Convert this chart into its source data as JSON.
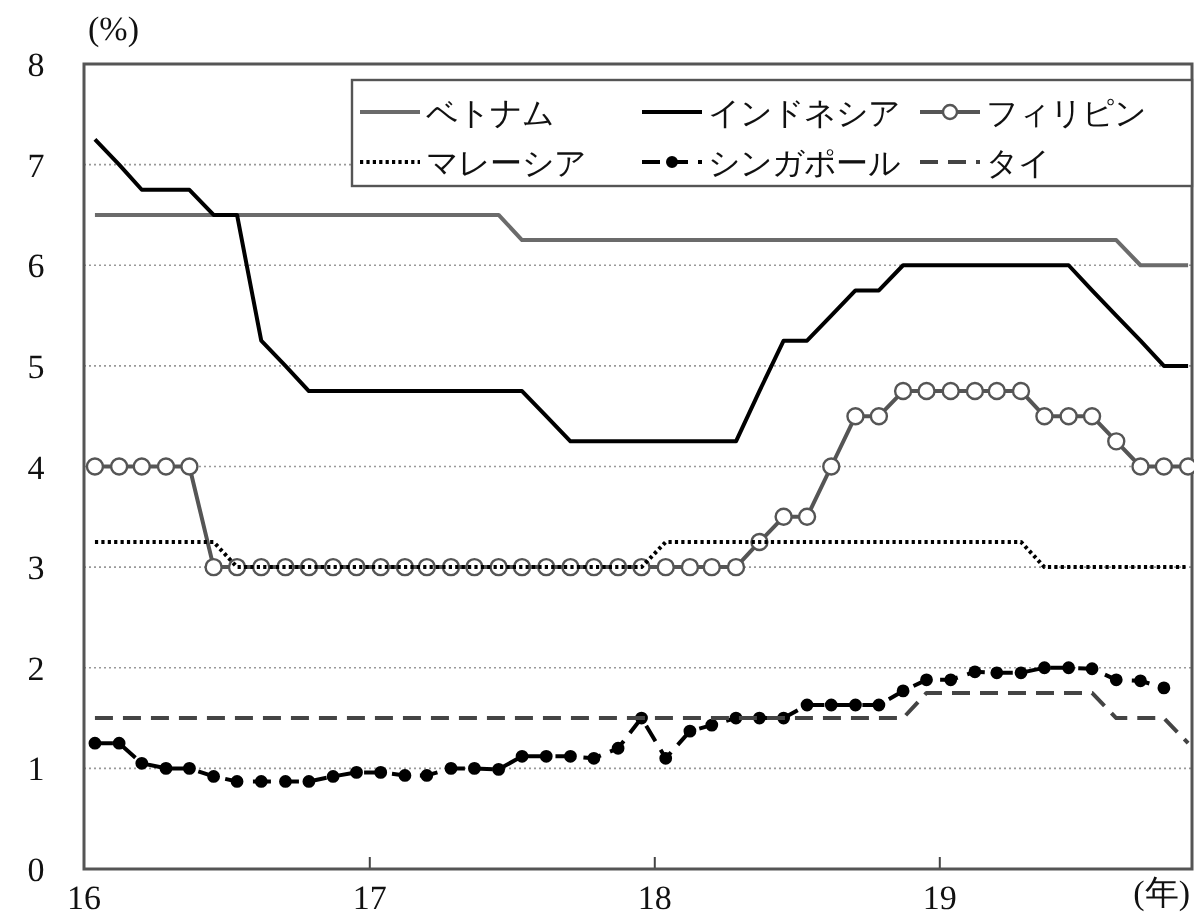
{
  "chart_data": {
    "type": "line",
    "ylabel": "(%)",
    "xlabel": "(年)",
    "x": [
      "2016-01-15",
      "2016-02-15",
      "2016-03-15",
      "2016-04-15",
      "2016-05-15",
      "2016-06-15",
      "2016-07-15",
      "2016-08-15",
      "2016-09-15",
      "2016-10-15",
      "2016-11-15",
      "2016-12-15",
      "2017-01-15",
      "2017-02-15",
      "2017-03-15",
      "2017-04-15",
      "2017-05-15",
      "2017-06-15",
      "2017-07-15",
      "2017-08-15",
      "2017-09-15",
      "2017-10-15",
      "2017-11-15",
      "2017-12-15",
      "2018-01-15",
      "2018-02-15",
      "2018-03-15",
      "2018-04-15",
      "2018-05-15",
      "2018-06-15",
      "2018-07-15",
      "2018-08-15",
      "2018-09-15",
      "2018-10-15",
      "2018-11-15",
      "2018-12-15",
      "2019-01-15",
      "2019-02-15",
      "2019-03-15",
      "2019-04-15",
      "2019-05-15",
      "2019-06-15",
      "2019-07-15",
      "2019-08-15",
      "2019-09-15",
      "2019-10-15",
      "2019-11-15"
    ],
    "series": [
      {
        "name": "ベトナム",
        "color": "#6b6b6b",
        "line_style": "solid",
        "marker": "none",
        "values": [
          6.5,
          6.5,
          6.5,
          6.5,
          6.5,
          6.5,
          6.5,
          6.5,
          6.5,
          6.5,
          6.5,
          6.5,
          6.5,
          6.5,
          6.5,
          6.5,
          6.5,
          6.5,
          6.25,
          6.25,
          6.25,
          6.25,
          6.25,
          6.25,
          6.25,
          6.25,
          6.25,
          6.25,
          6.25,
          6.25,
          6.25,
          6.25,
          6.25,
          6.25,
          6.25,
          6.25,
          6.25,
          6.25,
          6.25,
          6.25,
          6.25,
          6.25,
          6.25,
          6.25,
          6.0,
          6.0,
          6.0
        ]
      },
      {
        "name": "インドネシア",
        "color": "#000000",
        "line_style": "solid",
        "marker": "none",
        "values": [
          7.25,
          7.0,
          6.75,
          6.75,
          6.75,
          6.5,
          6.5,
          5.25,
          5.0,
          4.75,
          4.75,
          4.75,
          4.75,
          4.75,
          4.75,
          4.75,
          4.75,
          4.75,
          4.75,
          4.5,
          4.25,
          4.25,
          4.25,
          4.25,
          4.25,
          4.25,
          4.25,
          4.25,
          4.75,
          5.25,
          5.25,
          5.5,
          5.75,
          5.75,
          6.0,
          6.0,
          6.0,
          6.0,
          6.0,
          6.0,
          6.0,
          6.0,
          5.75,
          5.5,
          5.25,
          5.0,
          5.0
        ]
      },
      {
        "name": "フィリピン",
        "color": "#555555",
        "line_style": "solid",
        "marker": "circle",
        "values": [
          4.0,
          4.0,
          4.0,
          4.0,
          4.0,
          3.0,
          3.0,
          3.0,
          3.0,
          3.0,
          3.0,
          3.0,
          3.0,
          3.0,
          3.0,
          3.0,
          3.0,
          3.0,
          3.0,
          3.0,
          3.0,
          3.0,
          3.0,
          3.0,
          3.0,
          3.0,
          3.0,
          3.0,
          3.25,
          3.5,
          3.5,
          4.0,
          4.5,
          4.5,
          4.75,
          4.75,
          4.75,
          4.75,
          4.75,
          4.75,
          4.5,
          4.5,
          4.5,
          4.25,
          4.0,
          4.0,
          4.0
        ]
      },
      {
        "name": "マレーシア",
        "color": "#000000",
        "line_style": "dotted",
        "marker": "none",
        "values": [
          3.25,
          3.25,
          3.25,
          3.25,
          3.25,
          3.25,
          3.0,
          3.0,
          3.0,
          3.0,
          3.0,
          3.0,
          3.0,
          3.0,
          3.0,
          3.0,
          3.0,
          3.0,
          3.0,
          3.0,
          3.0,
          3.0,
          3.0,
          3.0,
          3.25,
          3.25,
          3.25,
          3.25,
          3.25,
          3.25,
          3.25,
          3.25,
          3.25,
          3.25,
          3.25,
          3.25,
          3.25,
          3.25,
          3.25,
          3.25,
          3.0,
          3.0,
          3.0,
          3.0,
          3.0,
          3.0,
          3.0
        ]
      },
      {
        "name": "シンガポール",
        "color": "#000000",
        "line_style": "dashed",
        "marker": "circle",
        "values": [
          1.25,
          1.25,
          1.05,
          1.0,
          1.0,
          0.92,
          0.87,
          0.87,
          0.87,
          0.87,
          0.92,
          0.96,
          0.96,
          0.93,
          0.93,
          1.0,
          1.0,
          0.99,
          1.12,
          1.12,
          1.12,
          1.1,
          1.2,
          1.5,
          1.1,
          1.37,
          1.43,
          1.5,
          1.5,
          1.5,
          1.63,
          1.63,
          1.63,
          1.63,
          1.77,
          1.88,
          1.88,
          1.96,
          1.95,
          1.95,
          2.0,
          2.0,
          1.99,
          1.88,
          1.87,
          1.8,
          null
        ]
      },
      {
        "name": "タイ",
        "color": "#444444",
        "line_style": "dashed",
        "marker": "none",
        "values": [
          1.5,
          1.5,
          1.5,
          1.5,
          1.5,
          1.5,
          1.5,
          1.5,
          1.5,
          1.5,
          1.5,
          1.5,
          1.5,
          1.5,
          1.5,
          1.5,
          1.5,
          1.5,
          1.5,
          1.5,
          1.5,
          1.5,
          1.5,
          1.5,
          1.5,
          1.5,
          1.5,
          1.5,
          1.5,
          1.5,
          1.5,
          1.5,
          1.5,
          1.5,
          1.5,
          1.75,
          1.75,
          1.75,
          1.75,
          1.75,
          1.75,
          1.75,
          1.75,
          1.5,
          1.5,
          1.5,
          1.25
        ]
      }
    ],
    "xlim": [
      "2016-01-01",
      "2019-11-20"
    ],
    "xticks": [
      {
        "value": "2016-01-01",
        "label": "16"
      },
      {
        "value": "2017-01-01",
        "label": "17"
      },
      {
        "value": "2018-01-01",
        "label": "18"
      },
      {
        "value": "2019-01-01",
        "label": "19"
      }
    ],
    "ylim": [
      0,
      8
    ],
    "yticks": [
      0,
      1,
      2,
      3,
      4,
      5,
      6,
      7,
      8
    ],
    "grid": "y",
    "legend": "top right"
  }
}
